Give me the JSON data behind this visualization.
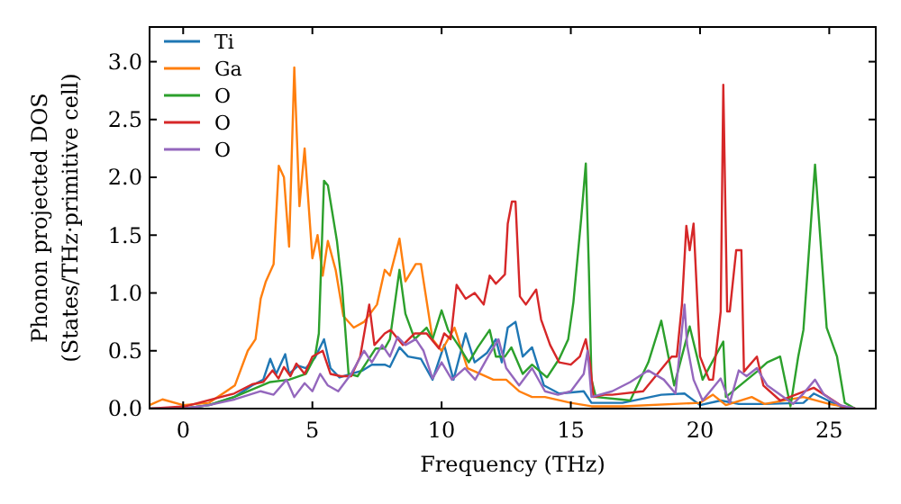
{
  "chart_data": {
    "type": "line",
    "xlabel": "Frequency (THz)",
    "ylabel": "Phonon projected DOS\n(States/THz·primitive cell)",
    "xlim": [
      -1.3,
      26.8
    ],
    "ylim": [
      0,
      3.3
    ],
    "xticks": [
      0,
      5,
      10,
      15,
      20,
      25
    ],
    "yticks": [
      {
        "value": 0,
        "label": "0.0"
      },
      0.5,
      {
        "value": 1,
        "label": "1.0"
      },
      1.5,
      {
        "value": 2,
        "label": "2.0"
      },
      2.5,
      {
        "value": 3,
        "label": "3.0"
      }
    ],
    "legend": "top left",
    "series": [
      {
        "name": "Ti",
        "color": "#1f77b4",
        "x": [
          -1.3,
          0,
          1,
          1.97,
          2.67,
          3.1,
          3.37,
          3.6,
          3.95,
          4.1,
          4.45,
          4.75,
          5.1,
          5.45,
          5.7,
          6.05,
          6.5,
          6.95,
          7.3,
          7.8,
          8.0,
          8.37,
          8.7,
          9.2,
          9.65,
          10.1,
          10.46,
          10.93,
          11.28,
          11.75,
          12.1,
          12.33,
          12.56,
          12.86,
          13.14,
          13.5,
          13.96,
          14.55,
          15.5,
          15.8,
          17,
          18.5,
          19.4,
          20,
          20.8,
          21.5,
          22.5,
          24,
          24.4,
          25.5,
          26
        ],
        "values": [
          0,
          0,
          0.03,
          0.1,
          0.2,
          0.25,
          0.43,
          0.3,
          0.47,
          0.3,
          0.37,
          0.35,
          0.44,
          0.6,
          0.35,
          0.27,
          0.3,
          0.33,
          0.38,
          0.38,
          0.36,
          0.53,
          0.45,
          0.43,
          0.25,
          0.55,
          0.25,
          0.65,
          0.4,
          0.48,
          0.6,
          0.4,
          0.7,
          0.75,
          0.45,
          0.53,
          0.2,
          0.13,
          0.15,
          0.05,
          0.05,
          0.12,
          0.13,
          0.03,
          0.07,
          0.04,
          0.04,
          0.05,
          0.13,
          0.01,
          0
        ]
      },
      {
        "name": "Ga",
        "color": "#ff7f0e",
        "x": [
          -1.3,
          -0.8,
          0,
          1,
          2,
          2.5,
          2.8,
          3,
          3.2,
          3.5,
          3.7,
          3.9,
          4.1,
          4.3,
          4.5,
          4.7,
          5,
          5.2,
          5.4,
          5.6,
          5.9,
          6.2,
          6.6,
          7,
          7.5,
          7.8,
          8.0,
          8.37,
          8.6,
          9,
          9.2,
          9.65,
          10,
          10.5,
          11,
          11.3,
          12,
          12.5,
          13,
          13.5,
          14,
          15,
          15.8,
          17,
          20,
          20.5,
          21,
          22,
          22.5,
          24,
          25,
          26
        ],
        "values": [
          0.03,
          0.08,
          0.03,
          0.05,
          0.2,
          0.5,
          0.6,
          0.95,
          1.1,
          1.25,
          2.1,
          2.0,
          1.4,
          2.95,
          1.75,
          2.25,
          1.3,
          1.5,
          1.15,
          1.45,
          1.2,
          0.8,
          0.7,
          0.75,
          0.9,
          1.2,
          1.15,
          1.47,
          1.1,
          1.25,
          1.25,
          0.6,
          0.5,
          0.7,
          0.35,
          0.32,
          0.25,
          0.25,
          0.15,
          0.1,
          0.1,
          0.05,
          0.02,
          0.02,
          0.05,
          0.12,
          0.03,
          0.1,
          0.04,
          0.1,
          0.04,
          0
        ]
      },
      {
        "name": "O",
        "color": "#2ca02c",
        "x": [
          -1.3,
          0,
          1,
          1.97,
          3.37,
          4.1,
          4.75,
          5.1,
          5.25,
          5.45,
          5.6,
          5.95,
          6.15,
          6.4,
          6.75,
          7.1,
          7.45,
          7.8,
          8.0,
          8.37,
          8.6,
          8.96,
          9.42,
          9.65,
          10.0,
          10.25,
          10.7,
          11.05,
          11.4,
          11.86,
          12.1,
          12.45,
          12.7,
          13.14,
          13.5,
          14.08,
          14.55,
          14.9,
          15.1,
          15.4,
          15.58,
          15.7,
          15.8,
          15.97,
          16.9,
          17.3,
          18.0,
          18.5,
          19.0,
          19.6,
          20.1,
          20.9,
          21.0,
          22.2,
          22.6,
          23.1,
          23.5,
          23.8,
          24.0,
          24.45,
          24.9,
          25.3,
          25.6,
          26
        ],
        "values": [
          0,
          0,
          0.03,
          0.1,
          0.23,
          0.25,
          0.3,
          0.45,
          0.65,
          1.97,
          1.93,
          1.45,
          1.05,
          0.3,
          0.28,
          0.4,
          0.52,
          0.52,
          0.6,
          1.2,
          0.82,
          0.6,
          0.7,
          0.6,
          0.85,
          0.68,
          0.53,
          0.4,
          0.53,
          0.68,
          0.45,
          0.45,
          0.53,
          0.3,
          0.38,
          0.27,
          0.43,
          0.6,
          0.92,
          1.64,
          2.12,
          1.2,
          0.25,
          0.1,
          0.08,
          0.07,
          0.4,
          0.76,
          0.2,
          0.71,
          0.25,
          0.58,
          0.1,
          0.32,
          0.4,
          0.45,
          0.02,
          0.45,
          0.68,
          2.11,
          0.7,
          0.45,
          0.05,
          0
        ]
      },
      {
        "name": "O",
        "color": "#d62728",
        "x": [
          -1.3,
          0.1,
          1.97,
          2.67,
          3.1,
          3.46,
          3.69,
          3.9,
          4.15,
          4.38,
          4.7,
          5.0,
          5.4,
          5.7,
          6.1,
          6.5,
          6.85,
          7.2,
          7.4,
          7.8,
          8.03,
          8.5,
          8.96,
          9.42,
          9.9,
          10.1,
          10.35,
          10.58,
          10.93,
          11.28,
          11.63,
          11.86,
          12.1,
          12.45,
          12.56,
          12.72,
          12.86,
          13.03,
          13.26,
          13.66,
          13.85,
          14.2,
          14.55,
          15.0,
          15.35,
          15.58,
          15.75,
          15.88,
          16.3,
          16.6,
          17.8,
          18.9,
          19.1,
          19.3,
          19.47,
          19.6,
          19.75,
          20.0,
          20.35,
          20.5,
          20.8,
          20.9,
          21.05,
          21.15,
          21.4,
          21.6,
          21.7,
          22.2,
          22.45,
          23.1,
          24.4,
          25.5,
          26
        ],
        "values": [
          0,
          0.02,
          0.13,
          0.21,
          0.23,
          0.33,
          0.26,
          0.36,
          0.28,
          0.39,
          0.3,
          0.45,
          0.5,
          0.3,
          0.28,
          0.28,
          0.45,
          0.9,
          0.55,
          0.65,
          0.68,
          0.55,
          0.65,
          0.65,
          0.52,
          0.65,
          0.6,
          1.07,
          0.95,
          1.0,
          0.9,
          1.15,
          1.08,
          1.16,
          1.6,
          1.79,
          1.79,
          0.97,
          0.9,
          1.03,
          0.77,
          0.55,
          0.4,
          0.38,
          0.45,
          0.6,
          0.38,
          0.1,
          0.12,
          0.12,
          0.15,
          0.45,
          0.45,
          0.9,
          1.58,
          1.37,
          1.6,
          0.45,
          0.25,
          0.25,
          0.84,
          2.8,
          0.84,
          0.84,
          1.37,
          1.37,
          0.32,
          0.45,
          0.2,
          0.07,
          0.18,
          0.02,
          0
        ]
      },
      {
        "name": "O",
        "color": "#9467bd",
        "x": [
          -1.3,
          0,
          1,
          2,
          3,
          3.5,
          4,
          4.3,
          4.7,
          5.0,
          5.3,
          5.6,
          6,
          6.5,
          7,
          7.3,
          7.7,
          8.0,
          8.3,
          8.6,
          9,
          9.3,
          9.65,
          10,
          10.4,
          10.9,
          11.3,
          11.8,
          12.2,
          12.5,
          13,
          13.5,
          14,
          14.5,
          15,
          15.5,
          15.65,
          15.8,
          16.6,
          17.3,
          18.0,
          18.6,
          19.05,
          19.4,
          19.5,
          19.75,
          20.1,
          20.8,
          21.15,
          21.5,
          21.8,
          22.2,
          22.6,
          23.1,
          23.6,
          24.0,
          24.45,
          24.8,
          25.4,
          26
        ],
        "values": [
          0,
          0,
          0.03,
          0.08,
          0.15,
          0.12,
          0.25,
          0.1,
          0.22,
          0.15,
          0.3,
          0.2,
          0.15,
          0.3,
          0.5,
          0.4,
          0.55,
          0.45,
          0.62,
          0.55,
          0.6,
          0.5,
          0.26,
          0.4,
          0.25,
          0.35,
          0.25,
          0.45,
          0.6,
          0.35,
          0.2,
          0.35,
          0.15,
          0.12,
          0.15,
          0.3,
          0.5,
          0.1,
          0.15,
          0.23,
          0.33,
          0.25,
          0.13,
          0.9,
          0.55,
          0.25,
          0.07,
          0.26,
          0.05,
          0.33,
          0.28,
          0.35,
          0.2,
          0.12,
          0.04,
          0.13,
          0.25,
          0.12,
          0.03,
          0
        ]
      }
    ]
  }
}
